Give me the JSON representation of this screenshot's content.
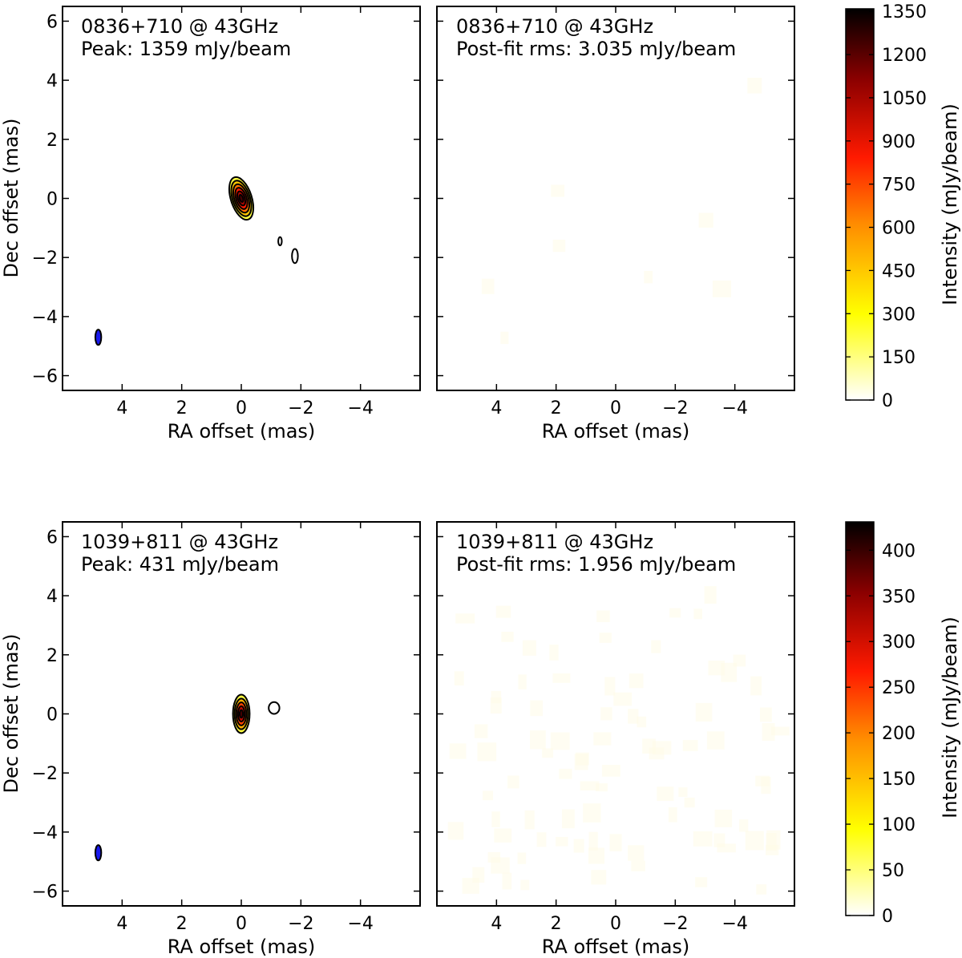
{
  "colors": {
    "frame": "#000000",
    "beam": "#1a1aee",
    "contour": "#000000"
  },
  "colormap": {
    "name": "afmhot_r",
    "stops": [
      "#ffffff",
      "#ffff00",
      "#ff7f00",
      "#ff0000",
      "#800000",
      "#000000"
    ]
  },
  "chart_data": [
    {
      "type": "heatmap",
      "panel": "top-left",
      "source": "0836+710 @ 43GHz",
      "subtitle": "Peak: 1359 mJy/beam",
      "xlabel": "RA offset (mas)",
      "ylabel": "Dec offset (mas)",
      "xlim": [
        6,
        -6
      ],
      "ylim": [
        -6.5,
        6.5
      ],
      "xticks": [
        4,
        2,
        0,
        -2,
        -4
      ],
      "yticks": [
        -6,
        -4,
        -2,
        0,
        2,
        4,
        6
      ],
      "xtick_labels": [
        "4",
        "2",
        "0",
        "−2",
        "−4"
      ],
      "ytick_labels": [
        "−6",
        "−4",
        "−2",
        "0",
        "2",
        "4",
        "6"
      ],
      "core": {
        "x": 0.0,
        "y": 0.0,
        "rx": 0.35,
        "ry": 0.75,
        "angle": -18,
        "levels": 6,
        "peak": 1359
      },
      "components": [
        {
          "x": -1.3,
          "y": -1.45,
          "rx": 0.06,
          "ry": 0.14,
          "angle": 0
        },
        {
          "x": -1.8,
          "y": -1.95,
          "rx": 0.1,
          "ry": 0.24,
          "angle": 0
        }
      ],
      "beam": {
        "x": 4.8,
        "y": -4.7,
        "rx": 0.1,
        "ry": 0.26,
        "angle": 0
      }
    },
    {
      "type": "heatmap",
      "panel": "top-right",
      "source": "0836+710 @ 43GHz",
      "subtitle": "Post-fit rms: 3.035 mJy/beam",
      "xlabel": "RA offset (mas)",
      "xlim": [
        6,
        -6
      ],
      "ylim": [
        -6.5,
        6.5
      ],
      "xticks": [
        4,
        2,
        0,
        -2,
        -4
      ],
      "xtick_labels": [
        "4",
        "2",
        "0",
        "−2",
        "−4"
      ],
      "residual_rms": 3.035
    },
    {
      "type": "heatmap",
      "panel": "bottom-left",
      "source": "1039+811 @ 43GHz",
      "subtitle": "Peak: 431 mJy/beam",
      "xlabel": "RA offset (mas)",
      "ylabel": "Dec offset (mas)",
      "xlim": [
        6,
        -6
      ],
      "ylim": [
        -6.5,
        6.5
      ],
      "xticks": [
        4,
        2,
        0,
        -2,
        -4
      ],
      "yticks": [
        -6,
        -4,
        -2,
        0,
        2,
        4,
        6
      ],
      "xtick_labels": [
        "4",
        "2",
        "0",
        "−2",
        "−4"
      ],
      "ytick_labels": [
        "−6",
        "−4",
        "−2",
        "0",
        "2",
        "4",
        "6"
      ],
      "core": {
        "x": 0.0,
        "y": 0.0,
        "rx": 0.28,
        "ry": 0.65,
        "angle": 0,
        "levels": 5,
        "peak": 431
      },
      "components": [
        {
          "x": -1.1,
          "y": 0.2,
          "rx": 0.18,
          "ry": 0.2,
          "angle": 0
        }
      ],
      "beam": {
        "x": 4.8,
        "y": -4.7,
        "rx": 0.1,
        "ry": 0.26,
        "angle": 0
      }
    },
    {
      "type": "heatmap",
      "panel": "bottom-right",
      "source": "1039+811 @ 43GHz",
      "subtitle": "Post-fit rms: 1.956 mJy/beam",
      "xlabel": "RA offset (mas)",
      "xlim": [
        6,
        -6
      ],
      "ylim": [
        -6.5,
        6.5
      ],
      "xticks": [
        4,
        2,
        0,
        -2,
        -4
      ],
      "xtick_labels": [
        "4",
        "2",
        "0",
        "−2",
        "−4"
      ],
      "residual_rms": 1.956
    }
  ],
  "colorbars": [
    {
      "label": "Intensity (mJy/beam)",
      "min": 0,
      "max": 1359,
      "ticks": [
        0,
        150,
        300,
        450,
        600,
        750,
        900,
        1050,
        1200,
        1350
      ],
      "tick_labels": [
        "0",
        "150",
        "300",
        "450",
        "600",
        "750",
        "900",
        "1050",
        "1200",
        "1350"
      ]
    },
    {
      "label": "Intensity (mJy/beam)",
      "min": 0,
      "max": 431,
      "ticks": [
        0,
        50,
        100,
        150,
        200,
        250,
        300,
        350,
        400
      ],
      "tick_labels": [
        "0",
        "50",
        "100",
        "150",
        "200",
        "250",
        "300",
        "350",
        "400"
      ]
    }
  ]
}
